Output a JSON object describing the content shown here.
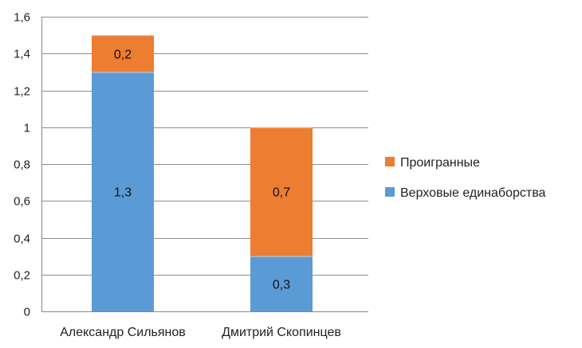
{
  "chart_data": {
    "type": "bar",
    "stacked": true,
    "categories": [
      "Александр Сильянов",
      "Дмитрий Скопинцев"
    ],
    "series": [
      {
        "name": "Верховые единаборства",
        "values": [
          1.3,
          0.3
        ],
        "labels": [
          "1,3",
          "0,3"
        ],
        "color": "#5b9bd5"
      },
      {
        "name": "Проигранные",
        "values": [
          0.2,
          0.7
        ],
        "labels": [
          "0,2",
          "0,7"
        ],
        "color": "#ed7d31"
      }
    ],
    "ylim": [
      0,
      1.6
    ],
    "yticks": [
      0,
      0.2,
      0.4,
      0.6,
      0.8,
      1,
      1.2,
      1.4,
      1.6
    ],
    "ytick_labels": [
      "0",
      "0,2",
      "0,4",
      "0,6",
      "0,8",
      "1",
      "1,2",
      "1,4",
      "1,6"
    ],
    "grid": true,
    "legend_position": "right",
    "legend_order": [
      "Проигранные",
      "Верховые единаборства"
    ]
  }
}
